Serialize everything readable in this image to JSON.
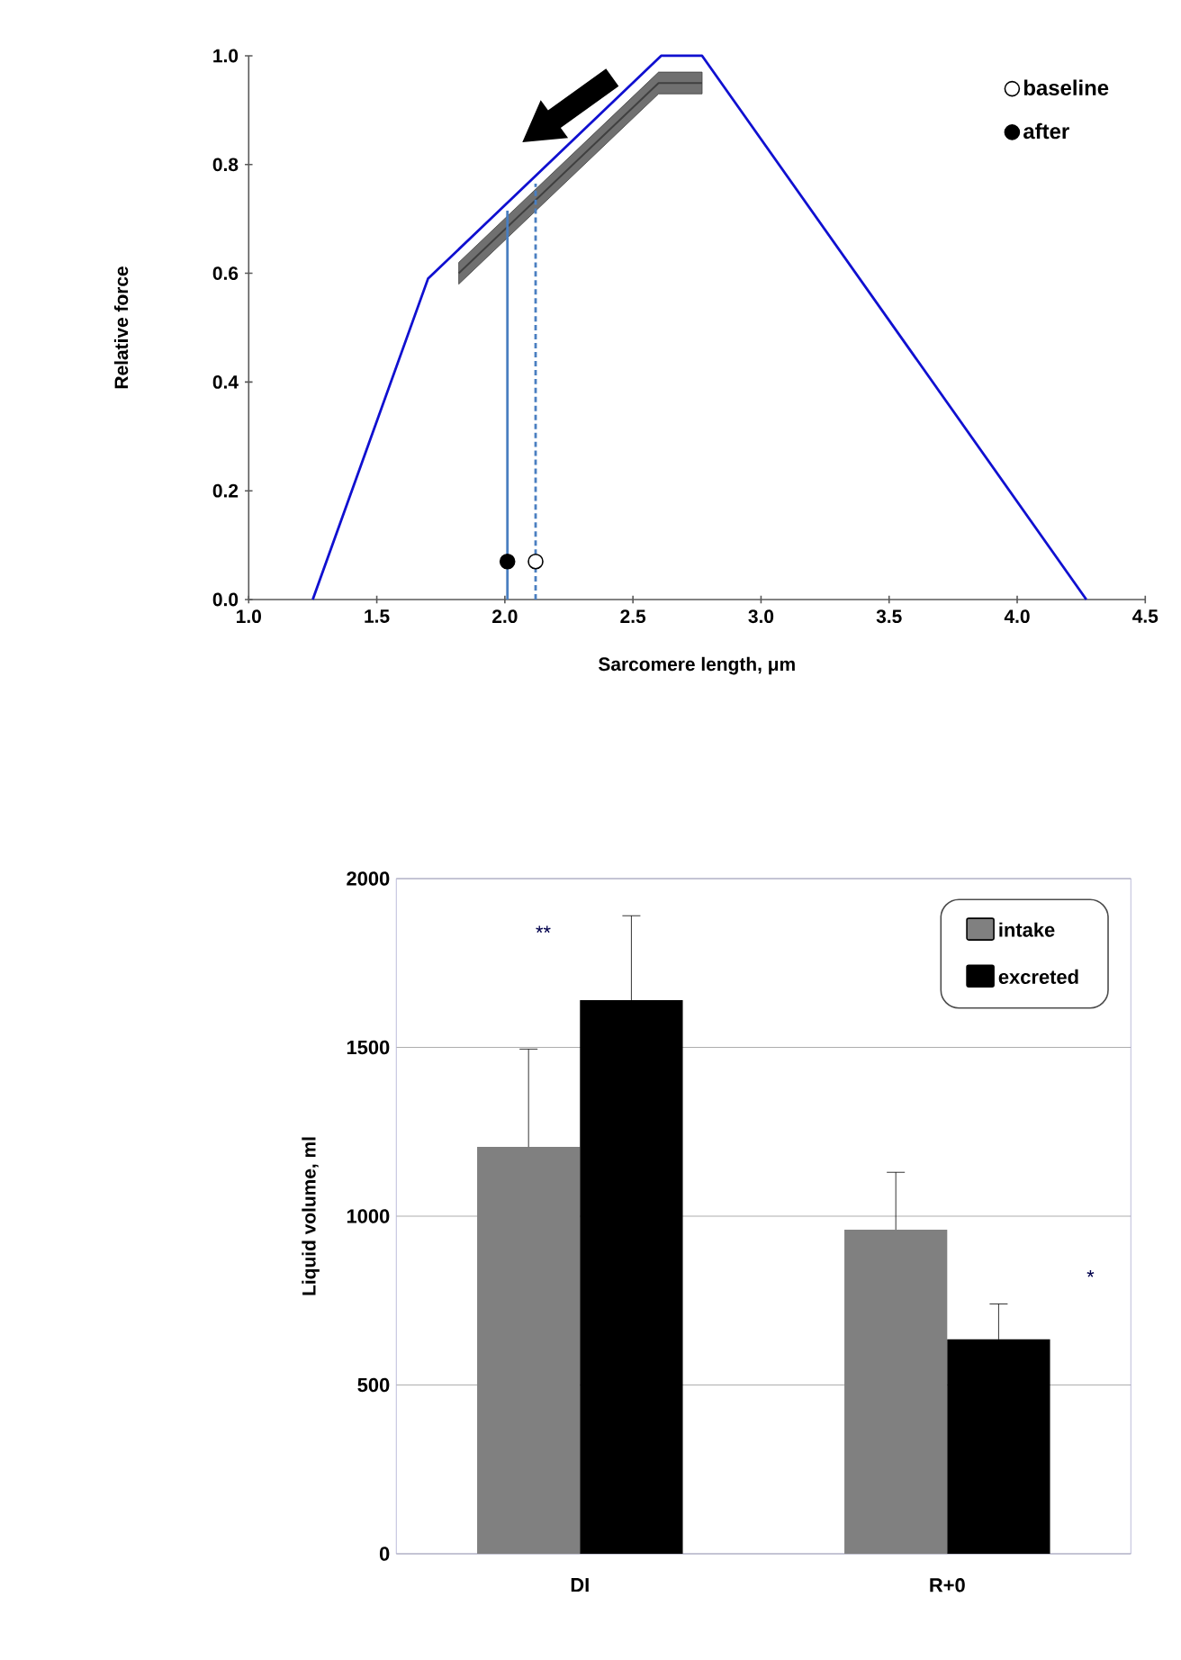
{
  "chart_data": [
    {
      "type": "line",
      "xlabel": "Sarcomere length, μm",
      "ylabel": "Relative force",
      "xlim": [
        1.0,
        4.5
      ],
      "ylim": [
        0,
        1.0
      ],
      "xticks": [
        {
          "value": 1.0,
          "label": "1.0"
        },
        {
          "value": 1.5,
          "label": "1.5"
        },
        {
          "value": 2.0,
          "label": "2.0"
        },
        {
          "value": 2.5,
          "label": "2.5"
        },
        {
          "value": 3.0,
          "label": "3.0"
        },
        {
          "value": 3.5,
          "label": "3.5"
        },
        {
          "value": 4.0,
          "label": "4.0"
        },
        {
          "value": 4.5,
          "label": "4.5"
        }
      ],
      "yticks": [
        {
          "value": 0,
          "label": "0.0"
        },
        {
          "value": 0.2,
          "label": "0.2"
        },
        {
          "value": 0.4,
          "label": "0.4"
        },
        {
          "value": 0.6,
          "label": "0.6"
        },
        {
          "value": 0.8,
          "label": "0.8"
        },
        {
          "value": 1.0,
          "label": "1.0"
        }
      ],
      "legend": "top right",
      "grid": false,
      "series": [
        {
          "type": "line",
          "color": "#1010d0",
          "marker": "none",
          "x": [
            1.25,
            1.7,
            2.61,
            2.77,
            4.27
          ],
          "values": [
            0,
            0.59,
            1.0,
            1.0,
            0
          ]
        },
        {
          "type": "line",
          "color": "#404040",
          "marker": "none",
          "x": [
            1.82,
            2.6,
            2.77
          ],
          "values": [
            0.6,
            0.95,
            0.95
          ],
          "lower": [
            0.58,
            0.93,
            0.93
          ],
          "upper": [
            0.62,
            0.97,
            0.97
          ]
        },
        {
          "type": "line",
          "color": "#4a7fc1",
          "marker": "none",
          "line_style": "solid",
          "x": [
            2.01,
            2.01
          ],
          "values": [
            0,
            0.715
          ]
        },
        {
          "type": "line",
          "color": "#4a7fc1",
          "marker": "none",
          "line_style": "dashed",
          "x": [
            2.12,
            2.12
          ],
          "values": [
            0,
            0.765
          ]
        },
        {
          "type": "scatter",
          "name": "baseline",
          "color": "#ffffff",
          "marker": "circle",
          "x": [
            2.12
          ],
          "values": [
            0.07
          ]
        },
        {
          "type": "scatter",
          "name": "after",
          "color": "#000000",
          "marker": "circle",
          "x": [
            2.01
          ],
          "values": [
            0.07
          ]
        }
      ]
    },
    {
      "type": "bar",
      "ylabel": "Liquid volume, ml",
      "categories": [
        "DI",
        "R+0"
      ],
      "ylim": [
        0,
        2000
      ],
      "yticks": [
        0,
        500,
        1000,
        1500,
        2000
      ],
      "grid": "y",
      "legend": "top right",
      "annotations": [
        "**",
        "*"
      ],
      "series": [
        {
          "name": "intake",
          "color": "#808080",
          "values": [
            1205,
            960
          ],
          "errors": [
            [
              1205,
              1495
            ],
            [
              960,
              1130
            ]
          ]
        },
        {
          "name": "excreted",
          "color": "#000000",
          "values": [
            1640,
            635
          ],
          "errors": [
            [
              1640,
              1890
            ],
            [
              635,
              740
            ]
          ]
        }
      ]
    }
  ]
}
